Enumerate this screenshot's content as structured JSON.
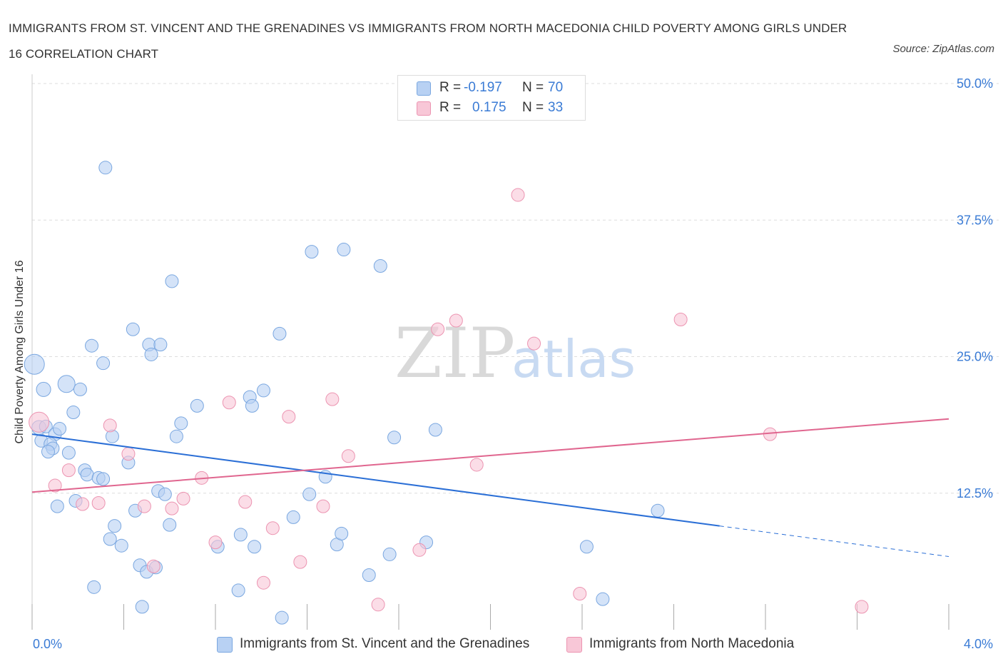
{
  "title": "IMMIGRANTS FROM ST. VINCENT AND THE GRENADINES VS IMMIGRANTS FROM NORTH MACEDONIA CHILD POVERTY AMONG GIRLS UNDER 16 CORRELATION CHART",
  "source": "Source: ZipAtlas.com",
  "watermark": {
    "zip": "ZIP",
    "atlas": "atlas"
  },
  "colors": {
    "blue_fill": "#b8d1f3",
    "blue_stroke": "#7aa7e0",
    "blue_line": "#2b6fd6",
    "pink_fill": "#f8c7d7",
    "pink_stroke": "#ec94b1",
    "pink_line": "#e0668f",
    "axis_text": "#3a7bd5",
    "grid": "#dddddd"
  },
  "legend": {
    "rows": [
      {
        "r_label": "R =",
        "r_value": "-0.197",
        "n_label": "N =",
        "n_value": "70"
      },
      {
        "r_label": "R =",
        "r_value": "0.175",
        "n_label": "N =",
        "n_value": "33"
      }
    ]
  },
  "bottom_legend": [
    {
      "label": "Immigrants from St. Vincent and the Grenadines"
    },
    {
      "label": "Immigrants from North Macedonia"
    }
  ],
  "chart_data": {
    "type": "scatter",
    "title": "IMMIGRANTS FROM ST. VINCENT AND THE GRENADINES VS IMMIGRANTS FROM NORTH MACEDONIA CHILD POVERTY AMONG GIRLS UNDER 16 CORRELATION CHART",
    "xlabel": "",
    "ylabel": "Child Poverty Among Girls Under 16",
    "xlim": [
      0.0,
      4.0
    ],
    "ylim": [
      0.0,
      50.0
    ],
    "x_tick_labels": [
      {
        "value": 0.0,
        "label": "0.0%"
      },
      {
        "value": 4.0,
        "label": "4.0%"
      }
    ],
    "y_tick_labels": [
      {
        "value": 12.5,
        "label": "12.5%"
      },
      {
        "value": 25.0,
        "label": "25.0%"
      },
      {
        "value": 37.5,
        "label": "37.5%"
      },
      {
        "value": 50.0,
        "label": "50.0%"
      }
    ],
    "grid": true,
    "legend_position": "top-center",
    "series": [
      {
        "name": "Immigrants from St. Vincent and the Grenadines",
        "color": "blue",
        "regression": {
          "x0": 0.0,
          "y0": 17.9,
          "x1": 3.0,
          "y1": 9.5,
          "dash_x1": 4.0,
          "dash_y1": 6.7
        },
        "points": [
          [
            0.01,
            24.3,
            14
          ],
          [
            0.05,
            22.0,
            10
          ],
          [
            0.15,
            22.5,
            12
          ],
          [
            0.03,
            18.5,
            10
          ],
          [
            0.06,
            18.6,
            9
          ],
          [
            0.1,
            17.9,
            9
          ],
          [
            0.04,
            17.3,
            9
          ],
          [
            0.08,
            17.0,
            9
          ],
          [
            0.09,
            16.6,
            9
          ],
          [
            0.07,
            16.3,
            9
          ],
          [
            0.12,
            18.4,
            9
          ],
          [
            0.16,
            16.2,
            9
          ],
          [
            0.18,
            19.9,
            9
          ],
          [
            0.21,
            22.0,
            9
          ],
          [
            0.26,
            26.0,
            9
          ],
          [
            0.31,
            24.4,
            9
          ],
          [
            0.32,
            42.3,
            9
          ],
          [
            0.35,
            17.7,
            9
          ],
          [
            0.23,
            14.6,
            9
          ],
          [
            0.24,
            14.2,
            9
          ],
          [
            0.29,
            13.9,
            9
          ],
          [
            0.31,
            13.8,
            9
          ],
          [
            0.42,
            15.3,
            9
          ],
          [
            0.44,
            27.5,
            9
          ],
          [
            0.51,
            26.1,
            9
          ],
          [
            0.52,
            25.2,
            9
          ],
          [
            0.56,
            26.1,
            9
          ],
          [
            0.61,
            31.9,
            9
          ],
          [
            0.63,
            17.7,
            9
          ],
          [
            0.65,
            18.9,
            9
          ],
          [
            0.72,
            20.5,
            9
          ],
          [
            0.11,
            11.3,
            9
          ],
          [
            0.19,
            11.8,
            9
          ],
          [
            0.55,
            12.7,
            9
          ],
          [
            0.58,
            12.4,
            9
          ],
          [
            0.45,
            10.9,
            9
          ],
          [
            0.36,
            9.5,
            9
          ],
          [
            0.34,
            8.3,
            9
          ],
          [
            0.39,
            7.7,
            9
          ],
          [
            0.6,
            9.6,
            9
          ],
          [
            0.47,
            5.9,
            9
          ],
          [
            0.5,
            5.3,
            9
          ],
          [
            0.54,
            5.7,
            9
          ],
          [
            0.27,
            3.9,
            9
          ],
          [
            0.48,
            2.1,
            9
          ],
          [
            0.81,
            7.6,
            9
          ],
          [
            0.9,
            3.6,
            9
          ],
          [
            0.91,
            8.7,
            9
          ],
          [
            0.95,
            21.3,
            9
          ],
          [
            0.96,
            20.5,
            9
          ],
          [
            1.01,
            21.9,
            9
          ],
          [
            0.97,
            7.6,
            9
          ],
          [
            1.08,
            27.1,
            9
          ],
          [
            1.09,
            1.1,
            9
          ],
          [
            1.14,
            10.3,
            9
          ],
          [
            1.22,
            34.6,
            9
          ],
          [
            1.21,
            12.4,
            9
          ],
          [
            1.28,
            14.0,
            9
          ],
          [
            1.33,
            7.8,
            9
          ],
          [
            1.35,
            8.8,
            9
          ],
          [
            1.36,
            34.8,
            9
          ],
          [
            1.47,
            5.0,
            9
          ],
          [
            1.52,
            33.3,
            9
          ],
          [
            1.56,
            6.9,
            9
          ],
          [
            1.58,
            17.6,
            9
          ],
          [
            1.72,
            8.0,
            9
          ],
          [
            1.76,
            18.3,
            9
          ],
          [
            2.42,
            7.6,
            9
          ],
          [
            2.49,
            2.8,
            9
          ],
          [
            2.73,
            10.9,
            9
          ]
        ]
      },
      {
        "name": "Immigrants from North Macedonia",
        "color": "pink",
        "regression": {
          "x0": 0.0,
          "y0": 12.6,
          "x1": 4.0,
          "y1": 19.3
        },
        "points": [
          [
            0.03,
            19.0,
            14
          ],
          [
            0.1,
            13.2,
            9
          ],
          [
            0.16,
            14.6,
            9
          ],
          [
            0.22,
            11.5,
            9
          ],
          [
            0.29,
            11.6,
            9
          ],
          [
            0.34,
            18.7,
            9
          ],
          [
            0.42,
            16.1,
            9
          ],
          [
            0.49,
            11.3,
            9
          ],
          [
            0.53,
            5.8,
            9
          ],
          [
            0.61,
            11.1,
            9
          ],
          [
            0.66,
            12.0,
            9
          ],
          [
            0.74,
            13.9,
            9
          ],
          [
            0.8,
            8.0,
            9
          ],
          [
            0.86,
            20.8,
            9
          ],
          [
            0.93,
            11.7,
            9
          ],
          [
            1.01,
            4.3,
            9
          ],
          [
            1.05,
            9.3,
            9
          ],
          [
            1.12,
            19.5,
            9
          ],
          [
            1.17,
            6.2,
            9
          ],
          [
            1.27,
            11.3,
            9
          ],
          [
            1.31,
            21.1,
            9
          ],
          [
            1.38,
            15.9,
            9
          ],
          [
            1.51,
            2.3,
            9
          ],
          [
            1.69,
            7.3,
            9
          ],
          [
            1.77,
            27.5,
            9
          ],
          [
            1.85,
            28.3,
            9
          ],
          [
            1.94,
            15.1,
            9
          ],
          [
            2.12,
            39.8,
            9
          ],
          [
            2.19,
            26.2,
            9
          ],
          [
            2.39,
            3.3,
            9
          ],
          [
            2.83,
            28.4,
            9
          ],
          [
            3.22,
            17.9,
            9
          ],
          [
            3.62,
            2.1,
            9
          ]
        ]
      }
    ]
  }
}
